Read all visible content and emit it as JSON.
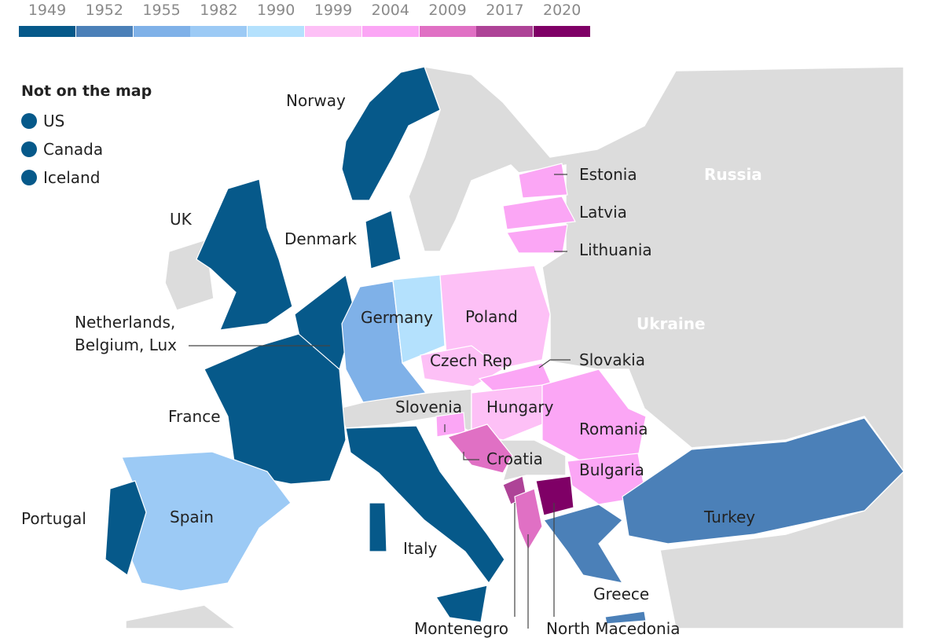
{
  "legend": {
    "years": [
      "1949",
      "1952",
      "1955",
      "1982",
      "1990",
      "1999",
      "2004",
      "2009",
      "2017",
      "2020"
    ],
    "colors": [
      "#06598a",
      "#4b80b8",
      "#7fb1e8",
      "#9ccaf5",
      "#b4e1fd",
      "#fdc0f6",
      "#fba6f5",
      "#e070c4",
      "#ae4397",
      "#7f0066"
    ]
  },
  "not_on_map": {
    "title": "Not on the map",
    "items": [
      "US",
      "Canada",
      "Iceland"
    ],
    "color": "#06598a"
  },
  "labels": {
    "norway": "Norway",
    "uk": "UK",
    "denmark": "Denmark",
    "benelux_1": "Netherlands,",
    "benelux_2": "Belgium, Lux",
    "france": "France",
    "portugal": "Portugal",
    "spain": "Spain",
    "italy": "Italy",
    "germany": "Germany",
    "poland": "Poland",
    "czech": "Czech Rep",
    "slovakia": "Slovakia",
    "slovenia": "Slovenia",
    "hungary": "Hungary",
    "croatia": "Croatia",
    "romania": "Romania",
    "bulgaria": "Bulgaria",
    "turkey": "Turkey",
    "greece": "Greece",
    "estonia": "Estonia",
    "latvia": "Latvia",
    "lithuania": "Lithuania",
    "russia": "Russia",
    "ukraine": "Ukraine",
    "montenegro": "Montenegro",
    "north_macedonia": "North Macedonia"
  },
  "colors": {
    "non_member": "#dcdcdc",
    "sea": "#ffffff",
    "border": "#ffffff"
  }
}
